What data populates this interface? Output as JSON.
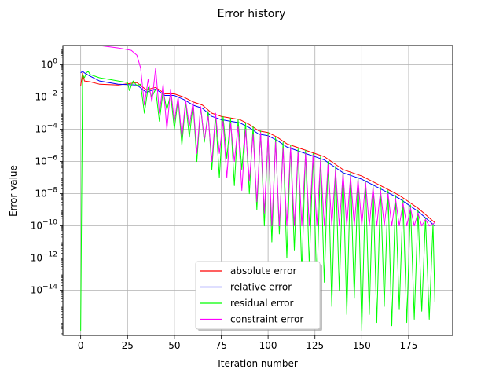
{
  "chart_data": {
    "type": "line",
    "title": "Error history",
    "xlabel": "Iteration number",
    "ylabel": "Error value",
    "xlim": [
      -9.5,
      198.5
    ],
    "ylim_log10": [
      -16.8,
      1.2
    ],
    "yscale": "log",
    "grid": true,
    "legend_position": "lower center",
    "x_ticks": [
      0,
      25,
      50,
      75,
      100,
      125,
      150,
      175
    ],
    "y_ticks": [
      {
        "exp": 0,
        "label": "10^0"
      },
      {
        "exp": -2,
        "label": "10^-2"
      },
      {
        "exp": -4,
        "label": "10^-4"
      },
      {
        "exp": -6,
        "label": "10^-6"
      },
      {
        "exp": -8,
        "label": "10^-8"
      },
      {
        "exp": -10,
        "label": "10^-10"
      },
      {
        "exp": -12,
        "label": "10^-12"
      },
      {
        "exp": -14,
        "label": "10^-14"
      }
    ],
    "x_range": [
      0,
      189
    ],
    "series": [
      {
        "name": "absolute error",
        "color": "#ff0000",
        "points_log10": [
          [
            0,
            -1.3
          ],
          [
            1,
            -0.5
          ],
          [
            2,
            -1.0
          ],
          [
            5,
            -1.05
          ],
          [
            10,
            -1.2
          ],
          [
            20,
            -1.25
          ],
          [
            30,
            -1.1
          ],
          [
            35,
            -1.55
          ],
          [
            40,
            -1.4
          ],
          [
            45,
            -1.8
          ],
          [
            50,
            -1.8
          ],
          [
            55,
            -2.0
          ],
          [
            60,
            -2.3
          ],
          [
            65,
            -2.5
          ],
          [
            70,
            -3.0
          ],
          [
            75,
            -3.2
          ],
          [
            80,
            -3.3
          ],
          [
            85,
            -3.4
          ],
          [
            90,
            -3.7
          ],
          [
            95,
            -4.1
          ],
          [
            100,
            -4.2
          ],
          [
            105,
            -4.5
          ],
          [
            110,
            -4.9
          ],
          [
            115,
            -5.1
          ],
          [
            120,
            -5.3
          ],
          [
            125,
            -5.5
          ],
          [
            130,
            -5.7
          ],
          [
            135,
            -6.1
          ],
          [
            140,
            -6.5
          ],
          [
            145,
            -6.7
          ],
          [
            150,
            -6.9
          ],
          [
            155,
            -7.2
          ],
          [
            160,
            -7.5
          ],
          [
            165,
            -7.8
          ],
          [
            170,
            -8.1
          ],
          [
            175,
            -8.5
          ],
          [
            180,
            -8.9
          ],
          [
            185,
            -9.4
          ],
          [
            189,
            -9.8
          ]
        ]
      },
      {
        "name": "relative error",
        "color": "#0000ff",
        "points_log10": [
          [
            0,
            -0.5
          ],
          [
            1,
            -0.4
          ],
          [
            2,
            -0.5
          ],
          [
            5,
            -0.7
          ],
          [
            10,
            -1.0
          ],
          [
            20,
            -1.2
          ],
          [
            30,
            -1.25
          ],
          [
            35,
            -1.7
          ],
          [
            40,
            -1.5
          ],
          [
            45,
            -1.9
          ],
          [
            50,
            -1.9
          ],
          [
            55,
            -2.15
          ],
          [
            60,
            -2.5
          ],
          [
            65,
            -2.7
          ],
          [
            70,
            -3.2
          ],
          [
            75,
            -3.4
          ],
          [
            80,
            -3.5
          ],
          [
            85,
            -3.6
          ],
          [
            90,
            -3.9
          ],
          [
            95,
            -4.3
          ],
          [
            100,
            -4.4
          ],
          [
            105,
            -4.7
          ],
          [
            110,
            -5.1
          ],
          [
            115,
            -5.3
          ],
          [
            120,
            -5.5
          ],
          [
            125,
            -5.7
          ],
          [
            130,
            -5.9
          ],
          [
            135,
            -6.3
          ],
          [
            140,
            -6.7
          ],
          [
            145,
            -6.9
          ],
          [
            150,
            -7.1
          ],
          [
            155,
            -7.4
          ],
          [
            160,
            -7.7
          ],
          [
            165,
            -8.0
          ],
          [
            170,
            -8.3
          ],
          [
            175,
            -8.7
          ],
          [
            180,
            -9.1
          ],
          [
            185,
            -9.6
          ],
          [
            189,
            -10.0
          ]
        ]
      },
      {
        "name": "residual error",
        "color": "#00ff00",
        "points_log10": [
          [
            0,
            -16.5
          ],
          [
            1,
            -0.6
          ],
          [
            2,
            -0.8
          ],
          [
            3,
            -0.5
          ],
          [
            4,
            -0.4
          ],
          [
            5,
            -0.6
          ],
          [
            10,
            -0.8
          ],
          [
            15,
            -0.9
          ],
          [
            20,
            -1.0
          ],
          [
            25,
            -1.1
          ],
          [
            26,
            -1.6
          ],
          [
            28,
            -1.0
          ],
          [
            30,
            -1.3
          ],
          [
            32,
            -1.2
          ],
          [
            34,
            -3.0
          ],
          [
            36,
            -1.4
          ],
          [
            38,
            -2.0
          ],
          [
            40,
            -1.5
          ],
          [
            42,
            -3.5
          ],
          [
            44,
            -1.6
          ],
          [
            46,
            -2.8
          ],
          [
            48,
            -1.8
          ],
          [
            50,
            -4.0
          ],
          [
            52,
            -2.1
          ],
          [
            54,
            -5.0
          ],
          [
            56,
            -2.3
          ],
          [
            58,
            -4.5
          ],
          [
            60,
            -2.4
          ],
          [
            62,
            -6.0
          ],
          [
            64,
            -2.6
          ],
          [
            66,
            -4.8
          ],
          [
            68,
            -2.9
          ],
          [
            70,
            -6.5
          ],
          [
            72,
            -3.1
          ],
          [
            74,
            -7.0
          ],
          [
            76,
            -3.2
          ],
          [
            78,
            -5.8
          ],
          [
            80,
            -3.3
          ],
          [
            82,
            -7.5
          ],
          [
            84,
            -3.4
          ],
          [
            86,
            -6.5
          ],
          [
            88,
            -3.6
          ],
          [
            90,
            -8.0
          ],
          [
            92,
            -3.8
          ],
          [
            94,
            -9.0
          ],
          [
            96,
            -4.1
          ],
          [
            98,
            -10.0
          ],
          [
            100,
            -4.2
          ],
          [
            102,
            -11.0
          ],
          [
            104,
            -4.5
          ],
          [
            106,
            -10.5
          ],
          [
            108,
            -4.8
          ],
          [
            110,
            -12.0
          ],
          [
            112,
            -5.0
          ],
          [
            114,
            -11.5
          ],
          [
            116,
            -5.2
          ],
          [
            118,
            -13.0
          ],
          [
            120,
            -5.3
          ],
          [
            122,
            -12.5
          ],
          [
            124,
            -5.5
          ],
          [
            126,
            -14.0
          ],
          [
            128,
            -5.7
          ],
          [
            130,
            -13.5
          ],
          [
            132,
            -6.0
          ],
          [
            134,
            -15.0
          ],
          [
            136,
            -6.3
          ],
          [
            138,
            -14.0
          ],
          [
            140,
            -6.5
          ],
          [
            142,
            -15.5
          ],
          [
            144,
            -6.7
          ],
          [
            146,
            -14.5
          ],
          [
            148,
            -6.9
          ],
          [
            150,
            -16.5
          ],
          [
            152,
            -7.2
          ],
          [
            154,
            -15.5
          ],
          [
            156,
            -7.4
          ],
          [
            158,
            -16.0
          ],
          [
            160,
            -7.6
          ],
          [
            162,
            -15.0
          ],
          [
            164,
            -7.8
          ],
          [
            166,
            -16.2
          ],
          [
            168,
            -8.1
          ],
          [
            170,
            -15.2
          ],
          [
            172,
            -8.4
          ],
          [
            174,
            -16.0
          ],
          [
            176,
            -8.7
          ],
          [
            178,
            -15.8
          ],
          [
            180,
            -9.0
          ],
          [
            182,
            -15.3
          ],
          [
            184,
            -9.5
          ],
          [
            186,
            -15.8
          ],
          [
            188,
            -9.9
          ],
          [
            189,
            -14.7
          ]
        ]
      },
      {
        "name": "constraint error",
        "color": "#ff00ff",
        "points_log10": [
          [
            0,
            1.3
          ],
          [
            10,
            1.25
          ],
          [
            20,
            1.05
          ],
          [
            27,
            0.9
          ],
          [
            30,
            0.6
          ],
          [
            32,
            -0.2
          ],
          [
            34,
            -2.5
          ],
          [
            36,
            -0.9
          ],
          [
            38,
            -2.3
          ],
          [
            40,
            -0.2
          ],
          [
            42,
            -3.0
          ],
          [
            44,
            -1.2
          ],
          [
            46,
            -4.0
          ],
          [
            48,
            -1.5
          ],
          [
            50,
            -3.5
          ],
          [
            52,
            -2.0
          ],
          [
            54,
            -4.5
          ],
          [
            56,
            -2.2
          ],
          [
            58,
            -3.8
          ],
          [
            60,
            -2.3
          ],
          [
            62,
            -5.5
          ],
          [
            64,
            -2.6
          ],
          [
            66,
            -4.6
          ],
          [
            68,
            -3.2
          ],
          [
            70,
            -6.0
          ],
          [
            72,
            -3.0
          ],
          [
            74,
            -5.5
          ],
          [
            76,
            -3.5
          ],
          [
            78,
            -7.0
          ],
          [
            80,
            -3.6
          ],
          [
            82,
            -6.0
          ],
          [
            84,
            -3.8
          ],
          [
            86,
            -7.8
          ],
          [
            88,
            -4.0
          ],
          [
            90,
            -7.2
          ],
          [
            92,
            -4.3
          ],
          [
            94,
            -8.5
          ],
          [
            96,
            -4.2
          ],
          [
            98,
            -9.2
          ],
          [
            100,
            -4.4
          ],
          [
            102,
            -10.0
          ],
          [
            104,
            -4.8
          ],
          [
            106,
            -10.0
          ],
          [
            108,
            -5.2
          ],
          [
            110,
            -10.0
          ],
          [
            112,
            -5.1
          ],
          [
            114,
            -10.0
          ],
          [
            116,
            -5.4
          ],
          [
            118,
            -10.0
          ],
          [
            120,
            -5.5
          ],
          [
            122,
            -10.0
          ],
          [
            124,
            -5.6
          ],
          [
            126,
            -10.0
          ],
          [
            128,
            -5.9
          ],
          [
            130,
            -10.0
          ],
          [
            132,
            -6.2
          ],
          [
            134,
            -10.0
          ],
          [
            136,
            -6.5
          ],
          [
            138,
            -10.0
          ],
          [
            140,
            -6.7
          ],
          [
            142,
            -10.0
          ],
          [
            144,
            -6.9
          ],
          [
            146,
            -10.0
          ],
          [
            148,
            -7.1
          ],
          [
            150,
            -10.0
          ],
          [
            152,
            -7.3
          ],
          [
            154,
            -10.0
          ],
          [
            156,
            -7.6
          ],
          [
            158,
            -10.0
          ],
          [
            160,
            -7.8
          ],
          [
            162,
            -10.0
          ],
          [
            164,
            -8.0
          ],
          [
            166,
            -10.0
          ],
          [
            168,
            -8.3
          ],
          [
            170,
            -10.0
          ],
          [
            172,
            -8.6
          ],
          [
            174,
            -10.0
          ],
          [
            176,
            -8.9
          ],
          [
            178,
            -10.0
          ],
          [
            180,
            -9.2
          ],
          [
            182,
            -10.0
          ],
          [
            184,
            -9.6
          ],
          [
            186,
            -10.0
          ],
          [
            189,
            -9.8
          ]
        ]
      }
    ]
  }
}
